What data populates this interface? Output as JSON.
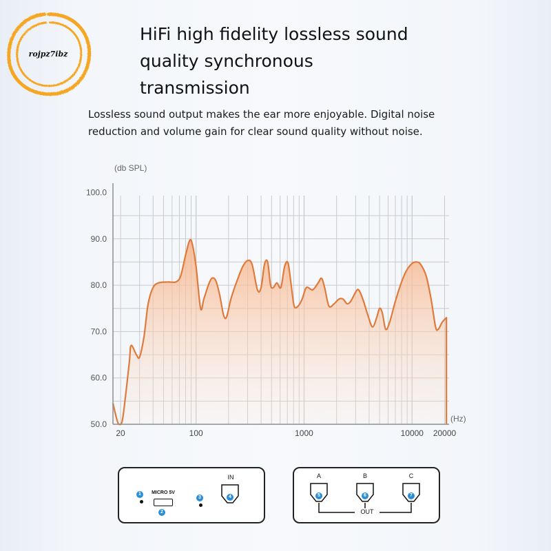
{
  "watermark": {
    "text": "rojpz7ibz",
    "color": "#f5a623"
  },
  "header": {
    "title_lines": [
      "HiFi high fidelity lossless sound",
      "quality synchronous",
      "transmission"
    ],
    "subtitle_lines": [
      "Lossless sound output makes the ear more enjoyable. Digital noise",
      "reduction and volume gain for clear sound quality without noise."
    ]
  },
  "chart_data": {
    "type": "area",
    "xlabel": "(Hz)",
    "ylabel": "(db SPL)",
    "xscale": "log",
    "xlim": [
      17,
      22000
    ],
    "ylim": [
      50,
      102
    ],
    "yticks": [
      50,
      60,
      70,
      80,
      90,
      100
    ],
    "ytick_labels": [
      "50.0",
      "60.0",
      "70.0",
      "80.0",
      "90.0",
      "100.0"
    ],
    "xticks": [
      20,
      100,
      1000,
      10000,
      20000
    ],
    "xtick_labels": [
      "20",
      "100",
      "1000",
      "10000",
      "20000"
    ],
    "grid": true,
    "line_color": "#e07a3c",
    "fill_color": "#f6b48a",
    "points": [
      [
        17,
        54.5
      ],
      [
        18.5,
        51
      ],
      [
        19.5,
        50
      ],
      [
        21,
        51.5
      ],
      [
        24,
        63
      ],
      [
        25,
        67
      ],
      [
        28,
        65
      ],
      [
        30,
        64.5
      ],
      [
        33,
        69
      ],
      [
        36,
        76
      ],
      [
        40,
        79.5
      ],
      [
        45,
        80.5
      ],
      [
        55,
        80.7
      ],
      [
        65,
        80.7
      ],
      [
        72,
        82
      ],
      [
        80,
        86.5
      ],
      [
        87,
        89.6
      ],
      [
        92,
        89
      ],
      [
        100,
        84
      ],
      [
        110,
        75
      ],
      [
        118,
        77
      ],
      [
        130,
        80
      ],
      [
        140,
        81.5
      ],
      [
        152,
        81
      ],
      [
        165,
        78
      ],
      [
        180,
        73.5
      ],
      [
        192,
        73.2
      ],
      [
        210,
        77
      ],
      [
        240,
        81
      ],
      [
        270,
        84
      ],
      [
        300,
        85.3
      ],
      [
        330,
        84.5
      ],
      [
        370,
        79
      ],
      [
        400,
        79.5
      ],
      [
        430,
        84.5
      ],
      [
        460,
        85
      ],
      [
        490,
        80
      ],
      [
        520,
        79.5
      ],
      [
        560,
        80.5
      ],
      [
        610,
        79.5
      ],
      [
        660,
        84
      ],
      [
        710,
        84.8
      ],
      [
        760,
        80
      ],
      [
        810,
        75.5
      ],
      [
        880,
        75.5
      ],
      [
        960,
        77
      ],
      [
        1050,
        79.5
      ],
      [
        1200,
        79
      ],
      [
        1350,
        80.5
      ],
      [
        1450,
        81.5
      ],
      [
        1550,
        79.5
      ],
      [
        1700,
        75.5
      ],
      [
        1900,
        76
      ],
      [
        2100,
        77
      ],
      [
        2300,
        77
      ],
      [
        2500,
        76
      ],
      [
        2700,
        76.5
      ],
      [
        3000,
        78.5
      ],
      [
        3200,
        79
      ],
      [
        3500,
        77
      ],
      [
        3900,
        73.5
      ],
      [
        4300,
        71
      ],
      [
        4700,
        73
      ],
      [
        5000,
        75
      ],
      [
        5300,
        74
      ],
      [
        5700,
        70.5
      ],
      [
        6200,
        72
      ],
      [
        6900,
        76
      ],
      [
        7800,
        80
      ],
      [
        8800,
        83
      ],
      [
        10000,
        84.7
      ],
      [
        11000,
        85
      ],
      [
        12000,
        84.5
      ],
      [
        13500,
        82
      ],
      [
        15000,
        77
      ],
      [
        16500,
        71
      ],
      [
        17500,
        70.5
      ],
      [
        19000,
        72
      ],
      [
        20800,
        73
      ]
    ]
  },
  "ports": {
    "micro_label": "MICRO 5V",
    "in_label": "IN",
    "out_label": "OUT",
    "channels": [
      "A",
      "B",
      "C"
    ],
    "badges": [
      "1",
      "2",
      "3",
      "4",
      "5",
      "6",
      "7"
    ],
    "badge_color": "#2a8ed6"
  }
}
